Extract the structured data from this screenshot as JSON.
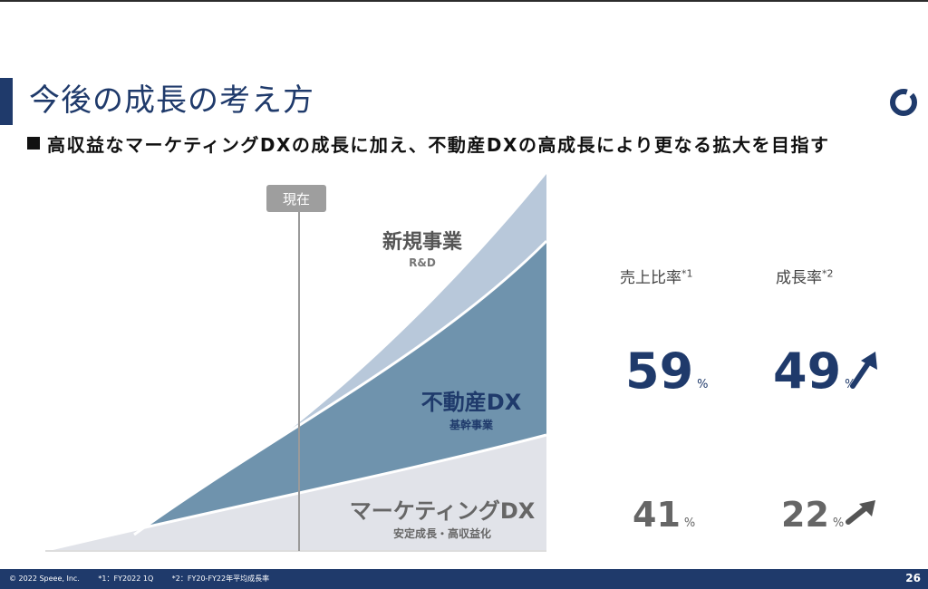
{
  "slide": {
    "title": "今後の成長の考え方",
    "subtitle": "高収益なマーケティングDXの成長に加え、不動産DXの高成長により更なる拡大を目指す",
    "page_number": "26"
  },
  "chart": {
    "now_label": "現在",
    "segments": [
      {
        "name": "新規事業",
        "sub": "R&D",
        "color": "#b8c8da"
      },
      {
        "name": "不動産DX",
        "sub": "基幹事業",
        "color": "#6f93ad"
      },
      {
        "name": "マーケティングDX",
        "sub": "安定成長・高収益化",
        "color": "#e1e3e9"
      }
    ]
  },
  "metrics": {
    "header_ratio": "売上比率",
    "header_ratio_note": "*1",
    "header_growth": "成長率",
    "header_growth_note": "*2",
    "percent_sign": "%",
    "rows": [
      {
        "ratio": "59",
        "growth": "49"
      },
      {
        "ratio": "41",
        "growth": "22"
      }
    ]
  },
  "colors": {
    "accent": "#1f3a6b",
    "arrow": "#555555"
  },
  "footer": {
    "copyright": "© 2022 Speee, Inc.",
    "note1": "*1：FY2022 1Q",
    "note2": "*2：FY20-FY22年平均成長率"
  }
}
